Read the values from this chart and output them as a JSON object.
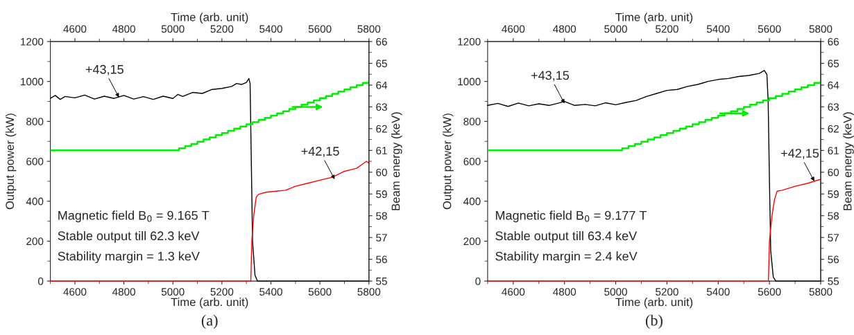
{
  "chart_data": [
    {
      "type": "line",
      "xlabel": "Time (arb. unit)",
      "x2label": "Time (arb. unit)",
      "ylabel": "Output power (kW)",
      "y2label": "Beam energy (keV)",
      "xlim": [
        4500,
        5800
      ],
      "xticks": [
        4600,
        4800,
        5000,
        5200,
        5400,
        5600,
        5800
      ],
      "x2lim": [
        4500,
        5800
      ],
      "x2ticks": [
        4600,
        4800,
        5000,
        5200,
        5400,
        5600,
        5800
      ],
      "ylim": [
        0,
        1200
      ],
      "yticks": [
        0,
        200,
        400,
        600,
        800,
        1000,
        1200
      ],
      "y2lim": [
        55,
        66
      ],
      "y2ticks": [
        55,
        56,
        57,
        58,
        59,
        60,
        61,
        62,
        63,
        64,
        65,
        66
      ],
      "grid": false,
      "series": [
        {
          "color": "#000000",
          "x": [
            4500,
            4520,
            4540,
            4560,
            4600,
            4640,
            4680,
            4720,
            4760,
            4800,
            4840,
            4880,
            4920,
            4960,
            5000,
            5020,
            5040,
            5080,
            5120,
            5160,
            5200,
            5240,
            5260,
            5280,
            5300,
            5310,
            5315,
            5320,
            5325,
            5335,
            5345,
            5800
          ],
          "values": [
            915,
            930,
            910,
            925,
            918,
            932,
            912,
            926,
            915,
            930,
            912,
            924,
            910,
            926,
            915,
            935,
            925,
            945,
            940,
            960,
            965,
            975,
            990,
            985,
            995,
            1015,
            990,
            600,
            200,
            30,
            0,
            0
          ]
        },
        {
          "color": "#ff0000",
          "x": [
            4500,
            5318,
            5322,
            5330,
            5340,
            5350,
            5380,
            5420,
            5460,
            5500,
            5550,
            5600,
            5650,
            5700,
            5750,
            5790,
            5800
          ],
          "values": [
            0,
            0,
            200,
            330,
            420,
            435,
            445,
            450,
            455,
            475,
            490,
            505,
            520,
            550,
            565,
            600,
            590
          ]
        },
        {
          "type": "step",
          "axis": "y2",
          "color": "#00ee00",
          "x": [
            4500,
            5000,
            5025,
            5050,
            5075,
            5100,
            5125,
            5150,
            5175,
            5200,
            5225,
            5250,
            5275,
            5300,
            5325,
            5350,
            5375,
            5400,
            5425,
            5450,
            5475,
            5500,
            5525,
            5550,
            5575,
            5600,
            5625,
            5650,
            5675,
            5700,
            5725,
            5750,
            5775,
            5800
          ],
          "values": [
            61.0,
            61.0,
            61.1,
            61.2,
            61.3,
            61.4,
            61.5,
            61.6,
            61.7,
            61.8,
            61.9,
            62.0,
            62.1,
            62.2,
            62.3,
            62.4,
            62.5,
            62.6,
            62.7,
            62.8,
            62.9,
            63.0,
            63.1,
            63.2,
            63.3,
            63.4,
            63.5,
            63.6,
            63.7,
            63.8,
            63.9,
            64.0,
            64.1,
            64.2
          ]
        }
      ],
      "annotations": [
        {
          "text": "+43,15",
          "x": 4780,
          "y": 920
        },
        {
          "text": "+42,15",
          "x": 5660,
          "y": 510
        },
        "Magnetic field B$_{0}$ = 9.165 T",
        "Stable output till 62.3 keV",
        "Stability margin = 1.3 keV",
        "(a)"
      ]
    },
    {
      "type": "line",
      "xlabel": "Time (arb. unit)",
      "x2label": "Time (arb. unit)",
      "ylabel": "Output power (kW)",
      "y2label": "Beam energy (keV)",
      "xlim": [
        4500,
        5800
      ],
      "xticks": [
        4600,
        4800,
        5000,
        5200,
        5400,
        5600,
        5800
      ],
      "x2lim": [
        4500,
        5800
      ],
      "x2ticks": [
        4600,
        4800,
        5000,
        5200,
        5400,
        5600,
        5800
      ],
      "ylim": [
        0,
        1200
      ],
      "yticks": [
        0,
        200,
        400,
        600,
        800,
        1000,
        1200
      ],
      "y2lim": [
        55,
        66
      ],
      "y2ticks": [
        55,
        56,
        57,
        58,
        59,
        60,
        61,
        62,
        63,
        64,
        65,
        66
      ],
      "grid": false,
      "series": [
        {
          "color": "#000000",
          "x": [
            4500,
            4540,
            4580,
            4620,
            4660,
            4700,
            4740,
            4780,
            4800,
            4840,
            4880,
            4920,
            4960,
            5000,
            5040,
            5080,
            5120,
            5160,
            5200,
            5240,
            5280,
            5320,
            5360,
            5400,
            5440,
            5480,
            5520,
            5560,
            5580,
            5590,
            5595,
            5600,
            5605,
            5615,
            5625,
            5800
          ],
          "values": [
            880,
            890,
            875,
            892,
            878,
            888,
            880,
            893,
            900,
            880,
            885,
            878,
            893,
            883,
            895,
            905,
            925,
            940,
            955,
            960,
            975,
            985,
            1000,
            1010,
            1015,
            1025,
            1030,
            1040,
            1055,
            1035,
            900,
            500,
            150,
            20,
            0,
            0
          ]
        },
        {
          "color": "#ff0000",
          "x": [
            4500,
            5596,
            5600,
            5610,
            5620,
            5630,
            5650,
            5700,
            5750,
            5800
          ],
          "values": [
            0,
            0,
            200,
            330,
            410,
            450,
            455,
            475,
            490,
            510
          ]
        },
        {
          "type": "step",
          "axis": "y2",
          "color": "#00ee00",
          "x": [
            4500,
            5000,
            5025,
            5050,
            5075,
            5100,
            5125,
            5150,
            5175,
            5200,
            5225,
            5250,
            5275,
            5300,
            5325,
            5350,
            5375,
            5400,
            5425,
            5450,
            5475,
            5500,
            5525,
            5550,
            5575,
            5600,
            5625,
            5650,
            5675,
            5700,
            5725,
            5750,
            5775,
            5800
          ],
          "values": [
            61.0,
            61.0,
            61.1,
            61.2,
            61.3,
            61.4,
            61.5,
            61.6,
            61.7,
            61.8,
            61.9,
            62.0,
            62.1,
            62.2,
            62.3,
            62.4,
            62.5,
            62.6,
            62.7,
            62.8,
            62.9,
            63.0,
            63.1,
            63.2,
            63.3,
            63.4,
            63.5,
            63.6,
            63.7,
            63.8,
            63.9,
            64.0,
            64.1,
            64.2
          ]
        }
      ],
      "annotations": [
        {
          "text": "+43,15",
          "x": 4800,
          "y": 890
        },
        {
          "text": "+42,15",
          "x": 5775,
          "y": 500
        },
        "Magnetic field B$_{0}$ = 9.177 T",
        "Stable output till 63.4 keV",
        "Stability margin = 2.4 keV",
        "(b)"
      ]
    }
  ]
}
